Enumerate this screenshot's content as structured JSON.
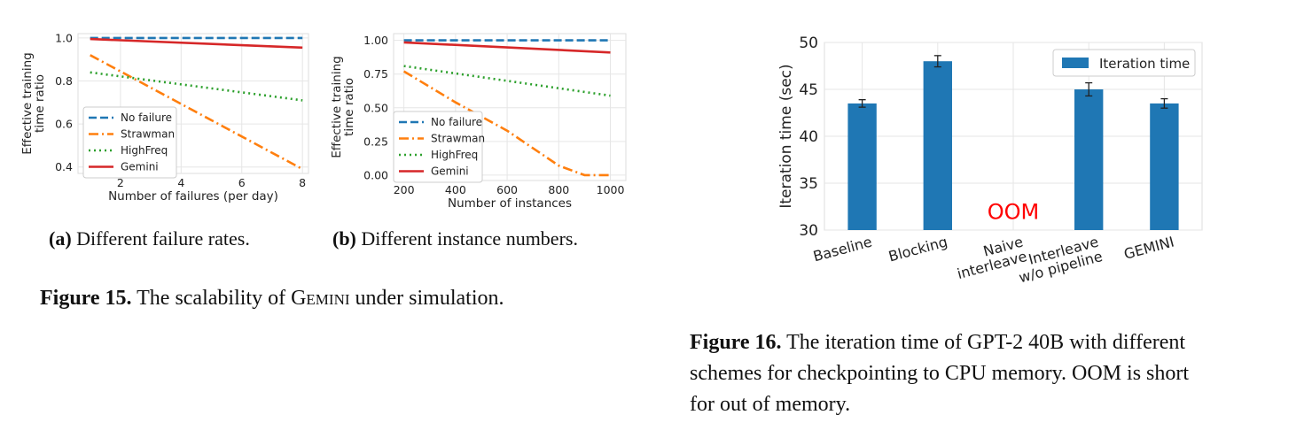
{
  "figure15": {
    "label": "Figure 15.",
    "text_before": "The scalability of",
    "system_name": "Gemini",
    "text_after": "under simulation.",
    "sub_a": {
      "label": "(a)",
      "text": "Different failure rates."
    },
    "sub_b": {
      "label": "(b)",
      "text": "Different instance numbers."
    }
  },
  "figure16": {
    "label": "Figure 16.",
    "line1": "The iteration time of GPT-2 40B with different",
    "line2": "schemes for checkpointing to CPU memory. OOM is short",
    "line3": "for out of memory."
  },
  "chart_data": [
    {
      "type": "line",
      "id": "fig15a",
      "xlabel": "Number of failures (per day)",
      "ylabel": "Effective training time ratio",
      "xlim": [
        0.6,
        8.2
      ],
      "ylim": [
        0.37,
        1.02
      ],
      "xticks": [
        2,
        4,
        6,
        8
      ],
      "yticks": [
        0.4,
        0.6,
        0.8,
        1.0
      ],
      "ytick_labels": [
        "0.4",
        "0.6",
        "0.8",
        "1.0"
      ],
      "grid": true,
      "legend_position": "lower-left",
      "series": [
        {
          "name": "No failure",
          "color": "#1f77b4",
          "style": "dashed",
          "x": [
            1,
            8
          ],
          "y": [
            1.0,
            1.0
          ]
        },
        {
          "name": "Strawman",
          "color": "#ff7f0e",
          "style": "dashdot",
          "x": [
            1,
            8
          ],
          "y": [
            0.92,
            0.39
          ]
        },
        {
          "name": "HighFreq",
          "color": "#2ca02c",
          "style": "dotted",
          "x": [
            1,
            8
          ],
          "y": [
            0.84,
            0.71
          ]
        },
        {
          "name": "Gemini",
          "color": "#d62728",
          "style": "solid",
          "x": [
            1,
            8
          ],
          "y": [
            0.995,
            0.955
          ]
        }
      ]
    },
    {
      "type": "line",
      "id": "fig15b",
      "xlabel": "Number of instances",
      "ylabel": "Effective training time ratio",
      "xlim": [
        160,
        1060
      ],
      "ylim": [
        -0.04,
        1.05
      ],
      "xticks": [
        200,
        400,
        600,
        800,
        1000
      ],
      "yticks": [
        0.0,
        0.25,
        0.5,
        0.75,
        1.0
      ],
      "ytick_labels": [
        "0.00",
        "0.25",
        "0.50",
        "0.75",
        "1.00"
      ],
      "grid": true,
      "legend_position": "lower-left",
      "series": [
        {
          "name": "No failure",
          "color": "#1f77b4",
          "style": "dashed",
          "x": [
            200,
            1000
          ],
          "y": [
            1.0,
            1.0
          ]
        },
        {
          "name": "Strawman",
          "color": "#ff7f0e",
          "style": "dashdot",
          "x": [
            200,
            400,
            600,
            800,
            900,
            1000
          ],
          "y": [
            0.77,
            0.54,
            0.33,
            0.07,
            0.0,
            0.0
          ]
        },
        {
          "name": "HighFreq",
          "color": "#2ca02c",
          "style": "dotted",
          "x": [
            200,
            1000
          ],
          "y": [
            0.81,
            0.59
          ]
        },
        {
          "name": "Gemini",
          "color": "#d62728",
          "style": "solid",
          "x": [
            200,
            1000
          ],
          "y": [
            0.985,
            0.91
          ]
        }
      ]
    },
    {
      "type": "bar",
      "id": "fig16",
      "categories": [
        "Baseline",
        "Blocking",
        "Naive interleave",
        "Interleave w/o pipeline",
        "GEMINI"
      ],
      "category_lines": [
        [
          "Baseline"
        ],
        [
          "Blocking"
        ],
        [
          "Naive",
          "interleave"
        ],
        [
          "Interleave",
          "w/o pipeline"
        ],
        [
          "GEMINI"
        ]
      ],
      "values": [
        43.5,
        48.0,
        null,
        45.0,
        43.5
      ],
      "errors": [
        0.4,
        0.6,
        null,
        0.7,
        0.5
      ],
      "series_name": "Iteration time",
      "bar_color": "#1f77b4",
      "ylabel": "Iteration time (sec)",
      "ylim": [
        30,
        50
      ],
      "yticks": [
        30,
        35,
        40,
        45,
        50
      ],
      "annotation": {
        "text": "OOM",
        "color": "#ff0000",
        "category_index": 2
      },
      "grid": true,
      "legend_position": "top-right"
    }
  ]
}
